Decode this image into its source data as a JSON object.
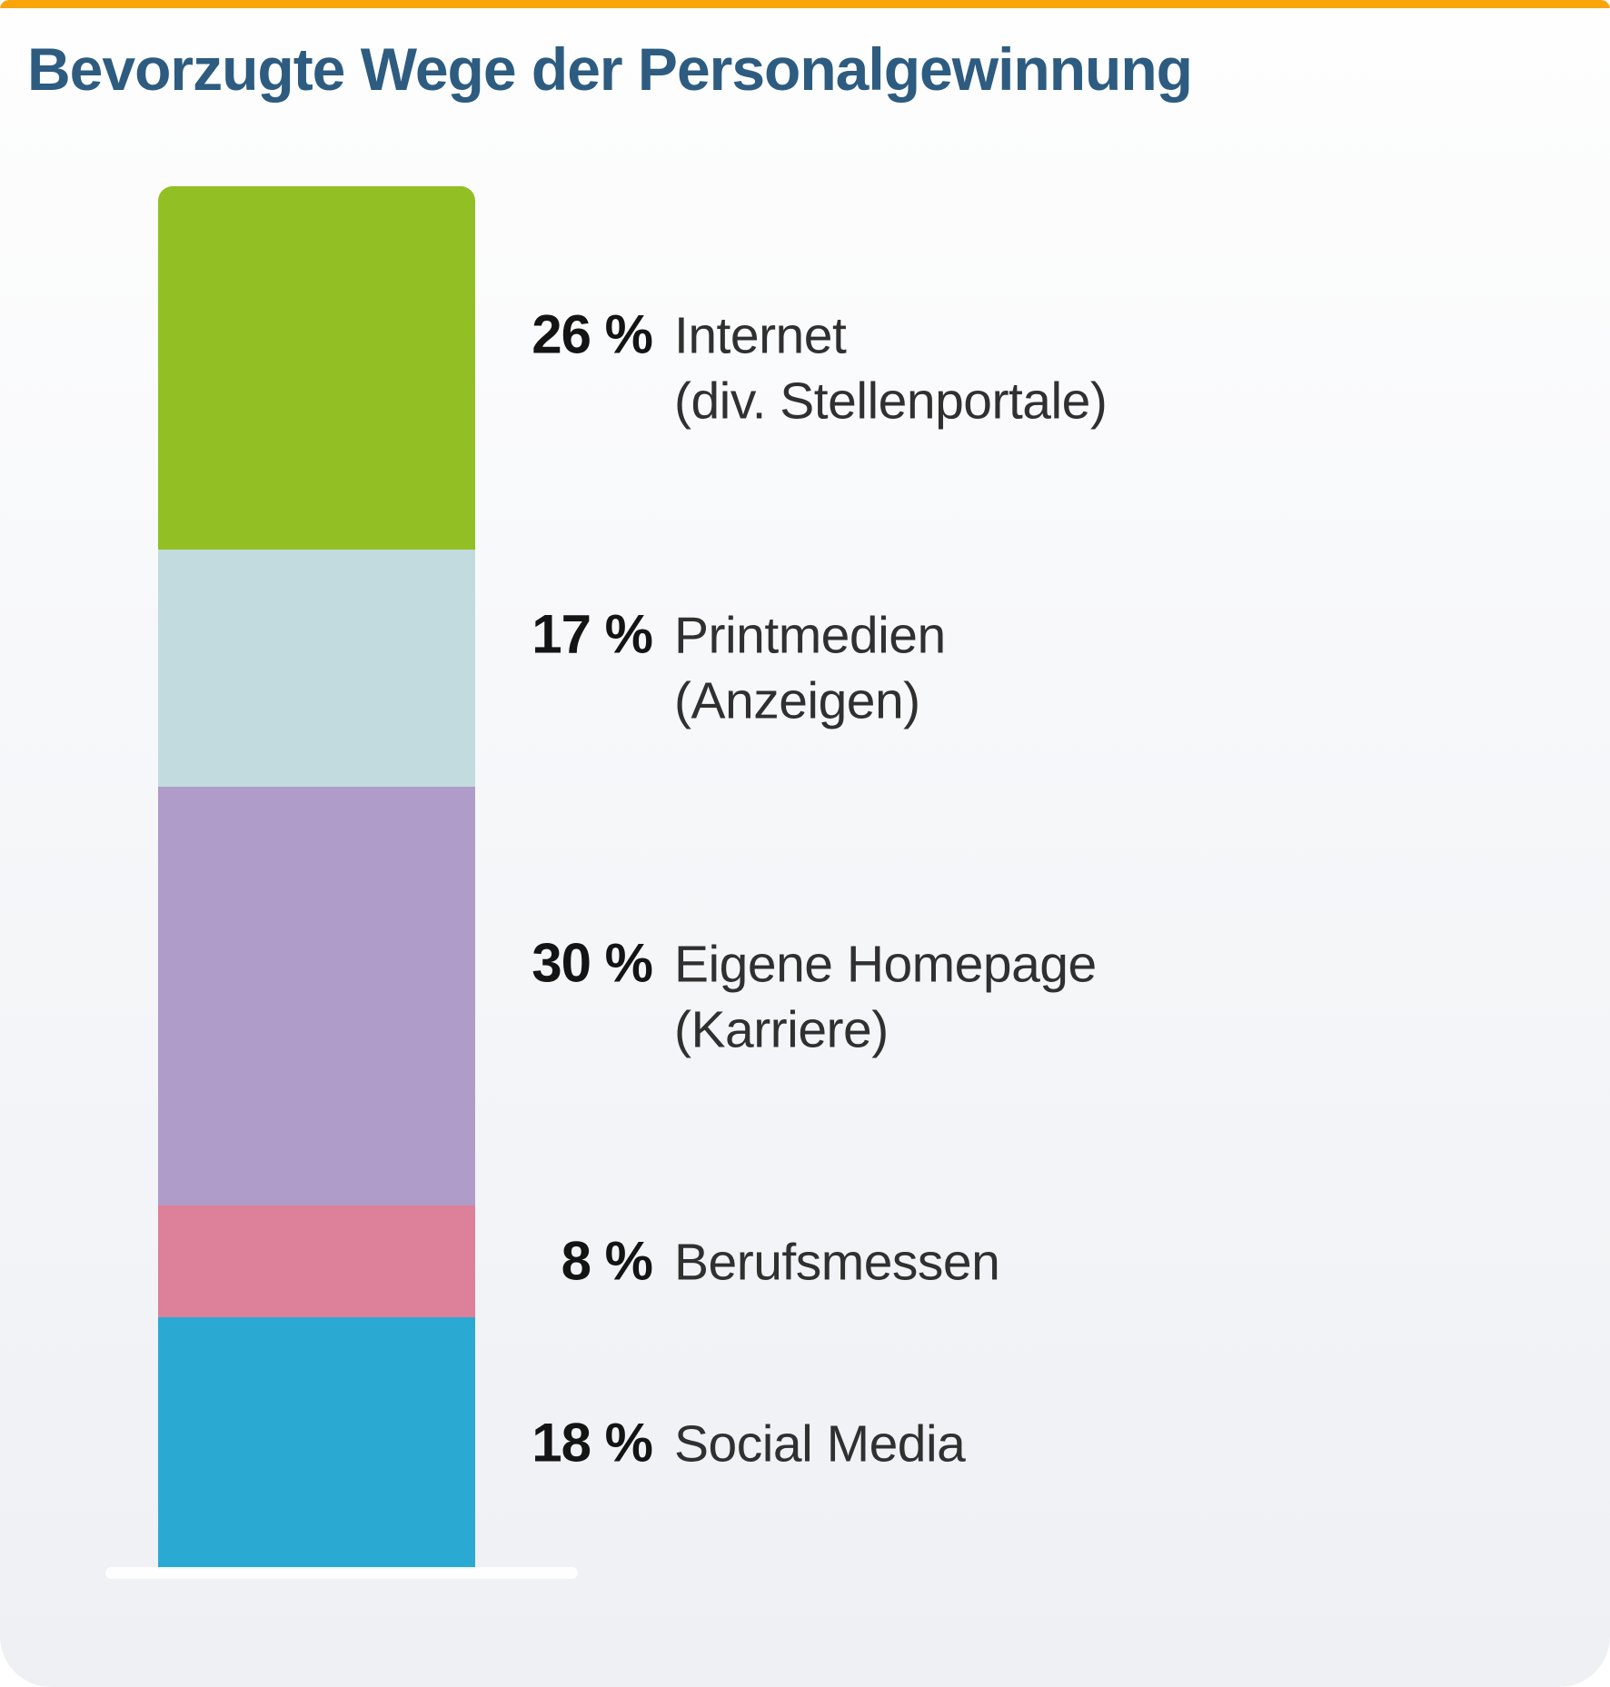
{
  "title": "Bevorzugte Wege der Personalgewinnung",
  "colors": {
    "accent_top_bar": "#f9a40a",
    "title_text": "#2d5c80",
    "value_text": "#141414",
    "label_text": "#303030",
    "baseline": "#ffffff",
    "background_top": "#fefefe",
    "background_bottom": "#eef0f4"
  },
  "chart_data": {
    "type": "bar",
    "variant": "single-stacked-vertical-bar",
    "title": "Bevorzugte Wege der Personalgewinnung",
    "unit": "%",
    "orientation": "vertical",
    "legend_position": "right-of-bar",
    "grid": false,
    "axis": "none",
    "segments": [
      {
        "label": "Internet",
        "sublabel": "(div. Stellenportale)",
        "value": 26,
        "value_label": "26 %",
        "color": "#92c024"
      },
      {
        "label": "Printmedien",
        "sublabel": "(Anzeigen)",
        "value": 17,
        "value_label": "17 %",
        "color": "#c2dbde"
      },
      {
        "label": "Eigene Homepage",
        "sublabel": "(Karriere)",
        "value": 30,
        "value_label": "30 %",
        "color": "#b09cc8"
      },
      {
        "label": "Berufsmessen",
        "sublabel": "",
        "value": 8,
        "value_label": "8 %",
        "color": "#dd8099"
      },
      {
        "label": "Social Media",
        "sublabel": "",
        "value": 18,
        "value_label": "18 %",
        "color": "#2aaad3"
      }
    ]
  }
}
